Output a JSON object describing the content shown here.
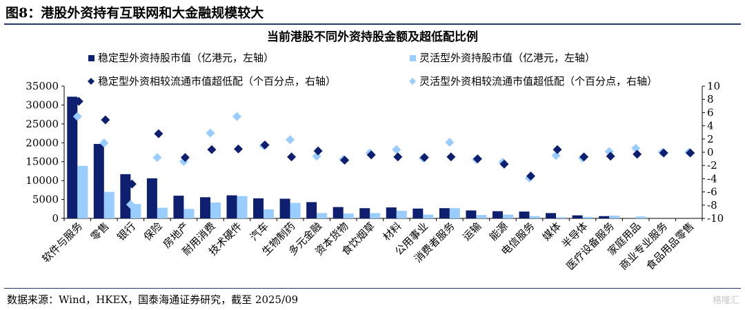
{
  "figure": {
    "title": "图8：港股外资持有互联网和大金融规模较大",
    "source": "数据来源：Wind，HKEX，国泰海通证券研究，截至 2025/09",
    "watermark": "格隆汇"
  },
  "colors": {
    "stable_bar": "#0d1f6e",
    "flex_bar": "#99ccff",
    "stable_marker": "#0d1f6e",
    "flex_marker": "#99ccff",
    "rule": "#1f3864"
  },
  "chart_data": {
    "type": "bar",
    "title": "当前港股不同外资持股金额及超低配比例",
    "categories": [
      "软件与服务",
      "零售",
      "银行",
      "保险",
      "房地产",
      "耐用消费",
      "技术硬件",
      "汽车",
      "生物制药",
      "多元金融",
      "资本货物",
      "食饮烟草",
      "材料",
      "公用事业",
      "消费者服务",
      "运输",
      "能源",
      "电信服务",
      "媒体",
      "半导体",
      "医疗设备服务",
      "家庭用品",
      "商业专业服务",
      "食品用品零售"
    ],
    "y_left": {
      "min": 0,
      "max": 35000,
      "ticks": [
        0,
        5000,
        10000,
        15000,
        20000,
        25000,
        30000,
        35000
      ]
    },
    "y_right": {
      "min": -10,
      "max": 10,
      "ticks": [
        -10,
        -8,
        -6,
        -4,
        -2,
        0,
        2,
        4,
        6,
        8,
        10
      ]
    },
    "grid": false,
    "legend_placement": "top",
    "series": [
      {
        "name": "稳定型外资持股市值（亿港元，左轴）",
        "kind": "bar",
        "axis": "left",
        "values": [
          32200,
          19700,
          11700,
          10600,
          6000,
          5600,
          6100,
          5300,
          5200,
          4300,
          3000,
          2700,
          2900,
          2600,
          2700,
          2100,
          1900,
          1800,
          1400,
          800,
          600,
          50,
          0,
          0
        ]
      },
      {
        "name": "灵活型外资持股市值（亿港元，左轴）",
        "kind": "bar",
        "axis": "left",
        "values": [
          13900,
          7000,
          3800,
          2800,
          2500,
          4200,
          5900,
          2400,
          4100,
          1400,
          1300,
          1400,
          2000,
          1000,
          2700,
          900,
          1000,
          600,
          300,
          400,
          700,
          500,
          0,
          0
        ]
      },
      {
        "name": "稳定型外资相较流通市值超低配（个百分点，右轴）",
        "kind": "marker",
        "axis": "right",
        "values": [
          7.7,
          4.9,
          -4.8,
          2.8,
          -0.8,
          0.4,
          0.5,
          1.1,
          -0.7,
          0.2,
          -1.2,
          -0.4,
          -0.7,
          -0.8,
          -0.7,
          -1.0,
          -1.8,
          -3.6,
          0.4,
          -0.7,
          -0.6,
          -0.3,
          -0.1,
          -0.1
        ]
      },
      {
        "name": "灵活型外资相较流通市值超低配（个百分点，右轴）",
        "kind": "marker",
        "axis": "right",
        "values": [
          5.4,
          1.4,
          -7.9,
          -0.8,
          -1.4,
          2.9,
          5.4,
          1.0,
          1.9,
          -0.6,
          -1.1,
          -0.1,
          0.4,
          -0.9,
          1.5,
          -1.1,
          -1.5,
          -3.9,
          -0.5,
          -0.9,
          0.1,
          0.6,
          0.0,
          0.0
        ]
      }
    ]
  }
}
